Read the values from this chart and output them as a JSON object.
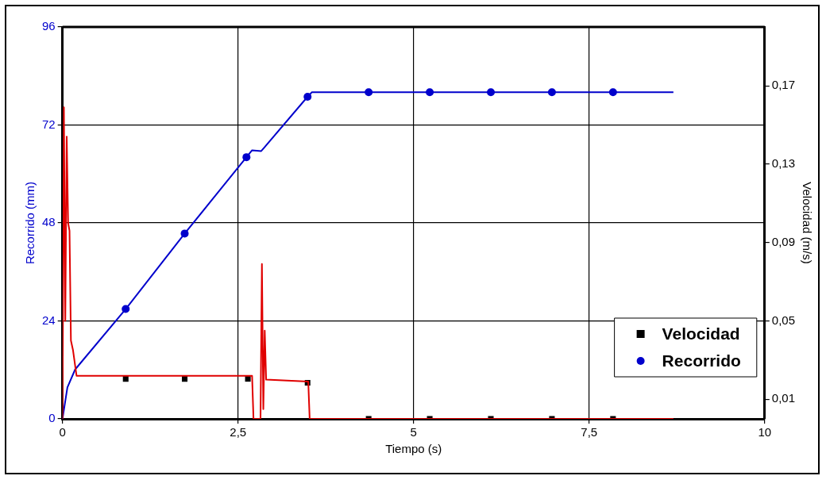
{
  "chart_data": {
    "type": "line",
    "xlabel": "Tiempo (s)",
    "ylabel": "Recorrido (mm)",
    "y2label": "Velocidad (m/s)",
    "xlim": [
      0,
      10
    ],
    "xticks": [
      0,
      {
        "value": 2.5,
        "label": "2,5"
      },
      5,
      {
        "value": 7.5,
        "label": "7,5"
      },
      10
    ],
    "ylim": [
      0,
      96
    ],
    "yticks": [
      0,
      24,
      48,
      72,
      96
    ],
    "y2lim": [
      0,
      0.2
    ],
    "y2ticks": [
      {
        "value": 0.01,
        "label": "0,01"
      },
      {
        "value": 0.05,
        "label": "0,05"
      },
      {
        "value": 0.09,
        "label": "0,09"
      },
      {
        "value": 0.13,
        "label": "0,13"
      },
      {
        "value": 0.17,
        "label": "0,17"
      }
    ],
    "grid": true,
    "legend": "bottom right",
    "line_style": "solid",
    "series": [
      {
        "type": "line",
        "color": "#e00000",
        "axis": "y2",
        "marker": "none",
        "x": [
          0,
          0.02,
          0.04,
          0.06,
          0.08,
          0.1,
          0.12,
          0.15,
          0.2,
          2.7,
          2.72,
          2.82,
          2.84,
          2.86,
          2.88,
          2.9,
          3.5,
          3.52,
          8.7
        ],
        "values": [
          0,
          0.159,
          0.05,
          0.144,
          0.1,
          0.096,
          0.04,
          0.035,
          0.022,
          0.022,
          0,
          0,
          0.079,
          0.005,
          0.045,
          0.02,
          0.019,
          0,
          0
        ]
      },
      {
        "type": "line",
        "color": "#0000cc",
        "axis": "y",
        "marker": "none",
        "x": [
          0,
          0.07,
          0.18,
          0.9,
          1.74,
          2.62,
          2.7,
          2.83,
          2.87,
          3.48,
          3.55,
          8.7
        ],
        "values": [
          0,
          7.7,
          12.1,
          26.9,
          45.4,
          64.1,
          65.8,
          65.6,
          66.4,
          78.7,
          80,
          80
        ]
      },
      {
        "type": "scatter",
        "name": "Velocidad",
        "color": "#000000",
        "axis": "y2",
        "marker": "square",
        "x": [
          0.9,
          1.74,
          2.64,
          3.49,
          4.36,
          5.23,
          6.1,
          6.97,
          7.84
        ],
        "values": [
          0.0204,
          0.0204,
          0.0204,
          0.0184,
          0,
          0,
          0,
          0,
          0
        ]
      },
      {
        "type": "scatter",
        "name": "Recorrido",
        "color": "#0000cc",
        "axis": "y",
        "marker": "circle",
        "x": [
          0.9,
          1.74,
          2.62,
          3.49,
          4.36,
          5.23,
          6.1,
          6.97,
          7.84
        ],
        "values": [
          26.9,
          45.4,
          64.1,
          78.9,
          80,
          80,
          80,
          80,
          80
        ]
      }
    ]
  }
}
